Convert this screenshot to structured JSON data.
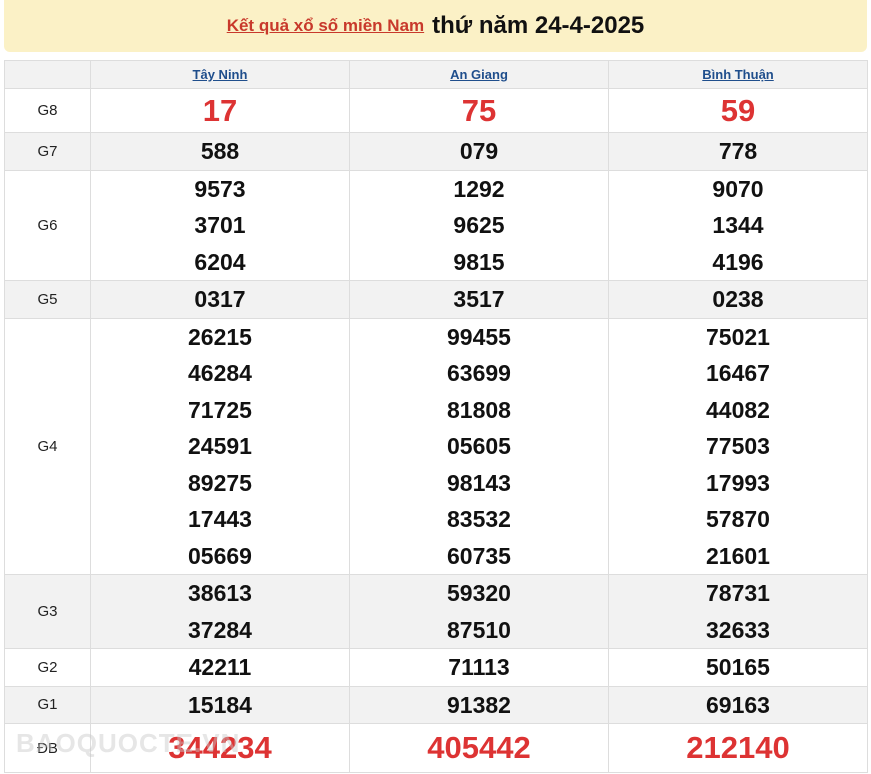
{
  "header": {
    "link": "Kết quả xổ số miền Nam",
    "date": "thứ năm 24-4-2025"
  },
  "provinces": [
    "Tây Ninh",
    "An Giang",
    "Bình Thuận"
  ],
  "watermark": "BAOQUOCTE.VN",
  "prizes": [
    {
      "label": "G8",
      "values": [
        [
          "17"
        ],
        [
          "75"
        ],
        [
          "59"
        ]
      ]
    },
    {
      "label": "G7",
      "values": [
        [
          "588"
        ],
        [
          "079"
        ],
        [
          "778"
        ]
      ]
    },
    {
      "label": "G6",
      "values": [
        [
          "9573",
          "3701",
          "6204"
        ],
        [
          "1292",
          "9625",
          "9815"
        ],
        [
          "9070",
          "1344",
          "4196"
        ]
      ]
    },
    {
      "label": "G5",
      "values": [
        [
          "0317"
        ],
        [
          "3517"
        ],
        [
          "0238"
        ]
      ]
    },
    {
      "label": "G4",
      "values": [
        [
          "26215",
          "46284",
          "71725",
          "24591",
          "89275",
          "17443",
          "05669"
        ],
        [
          "99455",
          "63699",
          "81808",
          "05605",
          "98143",
          "83532",
          "60735"
        ],
        [
          "75021",
          "16467",
          "44082",
          "77503",
          "17993",
          "57870",
          "21601"
        ]
      ]
    },
    {
      "label": "G3",
      "values": [
        [
          "38613",
          "37284"
        ],
        [
          "59320",
          "87510"
        ],
        [
          "78731",
          "32633"
        ]
      ]
    },
    {
      "label": "G2",
      "values": [
        [
          "42211"
        ],
        [
          "71113"
        ],
        [
          "50165"
        ]
      ]
    },
    {
      "label": "G1",
      "values": [
        [
          "15184"
        ],
        [
          "91382"
        ],
        [
          "69163"
        ]
      ]
    },
    {
      "label": "ĐB",
      "values": [
        [
          "344234"
        ],
        [
          "405442"
        ],
        [
          "212140"
        ]
      ]
    }
  ]
}
